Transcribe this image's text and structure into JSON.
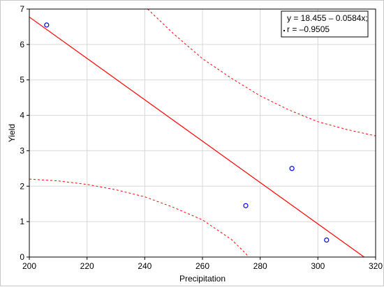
{
  "chart_data": {
    "type": "scatter",
    "title": "",
    "xlabel": "Precipitation",
    "ylabel": "Yield",
    "xlim": [
      200,
      320
    ],
    "ylim": [
      0,
      7
    ],
    "xticks": [
      "200",
      "220",
      "240",
      "260",
      "280",
      "300",
      "320"
    ],
    "yticks": [
      "0",
      "1",
      "2",
      "3",
      "4",
      "5",
      "6",
      "7"
    ],
    "grid": true,
    "points": [
      {
        "x": 206,
        "y": 6.55
      },
      {
        "x": 275,
        "y": 1.45
      },
      {
        "x": 291,
        "y": 2.5
      },
      {
        "x": 303,
        "y": 0.48
      }
    ],
    "regression": {
      "intercept": 18.455,
      "slope": -0.0584
    },
    "confidence_upper": [
      {
        "x": 241,
        "y": 7.0
      },
      {
        "x": 250,
        "y": 6.3
      },
      {
        "x": 260,
        "y": 5.6
      },
      {
        "x": 270,
        "y": 5.05
      },
      {
        "x": 280,
        "y": 4.55
      },
      {
        "x": 290,
        "y": 4.15
      },
      {
        "x": 300,
        "y": 3.82
      },
      {
        "x": 310,
        "y": 3.6
      },
      {
        "x": 320,
        "y": 3.42
      }
    ],
    "confidence_lower": [
      {
        "x": 200,
        "y": 2.2
      },
      {
        "x": 210,
        "y": 2.15
      },
      {
        "x": 220,
        "y": 2.05
      },
      {
        "x": 230,
        "y": 1.9
      },
      {
        "x": 240,
        "y": 1.7
      },
      {
        "x": 250,
        "y": 1.4
      },
      {
        "x": 260,
        "y": 1.05
      },
      {
        "x": 270,
        "y": 0.5
      },
      {
        "x": 275,
        "y": 0.1
      },
      {
        "x": 276,
        "y": 0.0
      }
    ],
    "legend": {
      "placement": "top-right",
      "lines": [
        "y = 18.455 – 0.0584x;",
        "r = –0.9505"
      ]
    },
    "colors": {
      "line": "#ff0000",
      "points": "#0000ff",
      "grid": "#d8d8d8",
      "axis": "#000000"
    }
  }
}
